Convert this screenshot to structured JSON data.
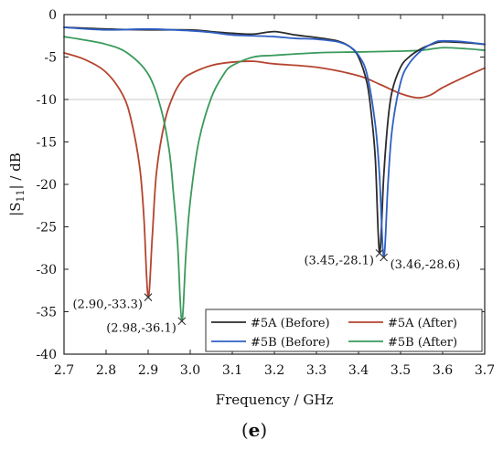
{
  "chart_data": {
    "type": "line",
    "xlabel": "Frequency / GHz",
    "ylabel": "|S11| / dB",
    "ylabel_parts": {
      "pre": "|S",
      "sub": "11",
      "post": "| / dB"
    },
    "panel_label": "(e)",
    "xlim": [
      2.7,
      3.7
    ],
    "ylim": [
      -40,
      0
    ],
    "xticks": [
      2.7,
      2.8,
      2.9,
      3.0,
      3.1,
      3.2,
      3.3,
      3.4,
      3.5,
      3.6,
      3.7
    ],
    "xtick_labels": [
      "2.7",
      "2.8",
      "2.9",
      "3.0",
      "3.1",
      "3.2",
      "3.3",
      "3.4",
      "3.5",
      "3.6",
      "3.7"
    ],
    "yticks": [
      0,
      -5,
      -10,
      -15,
      -20,
      -25,
      -30,
      -35,
      -40
    ],
    "ytick_labels": [
      "0",
      "-5",
      "-10",
      "-15",
      "-20",
      "-25",
      "-30",
      "-35",
      "-40"
    ],
    "reference_line": -10,
    "grid": false,
    "legend_position": "bottom-right",
    "series": [
      {
        "name": "#5A (Before)",
        "color": "#2b2b2b",
        "x": [
          2.7,
          2.8,
          2.9,
          3.0,
          3.05,
          3.1,
          3.15,
          3.2,
          3.25,
          3.3,
          3.35,
          3.38,
          3.4,
          3.42,
          3.43,
          3.44,
          3.45,
          3.46,
          3.47,
          3.48,
          3.5,
          3.52,
          3.55,
          3.58,
          3.6,
          3.65,
          3.7
        ],
        "y": [
          -1.5,
          -1.7,
          -1.8,
          -1.8,
          -2.0,
          -2.2,
          -2.3,
          -2.0,
          -2.4,
          -2.7,
          -3.1,
          -3.8,
          -5.0,
          -8.0,
          -11.5,
          -17.0,
          -28.1,
          -19.0,
          -12.5,
          -9.0,
          -6.2,
          -5.0,
          -4.0,
          -3.4,
          -3.2,
          -3.3,
          -3.5
        ]
      },
      {
        "name": "#5A (After)",
        "color": "#b5442f",
        "x": [
          2.7,
          2.75,
          2.8,
          2.84,
          2.86,
          2.88,
          2.89,
          2.9,
          2.91,
          2.92,
          2.94,
          2.96,
          2.98,
          3.0,
          3.05,
          3.1,
          3.15,
          3.2,
          3.3,
          3.4,
          3.45,
          3.5,
          3.54,
          3.57,
          3.6,
          3.65,
          3.7
        ],
        "y": [
          -4.5,
          -5.3,
          -6.8,
          -9.5,
          -12.5,
          -18.0,
          -24.0,
          -33.3,
          -26.0,
          -18.5,
          -12.5,
          -9.5,
          -7.8,
          -7.0,
          -6.0,
          -5.6,
          -5.5,
          -5.8,
          -6.2,
          -7.2,
          -8.2,
          -9.3,
          -9.8,
          -9.5,
          -8.6,
          -7.4,
          -6.3
        ]
      },
      {
        "name": "#5B (Before)",
        "color": "#2f5fc4",
        "x": [
          2.7,
          2.8,
          2.9,
          3.0,
          3.05,
          3.1,
          3.15,
          3.2,
          3.25,
          3.3,
          3.35,
          3.38,
          3.4,
          3.42,
          3.44,
          3.45,
          3.46,
          3.47,
          3.48,
          3.5,
          3.52,
          3.55,
          3.58,
          3.6,
          3.65,
          3.7
        ],
        "y": [
          -1.5,
          -1.8,
          -1.7,
          -1.9,
          -2.1,
          -2.4,
          -2.5,
          -2.6,
          -2.8,
          -2.9,
          -3.2,
          -3.8,
          -4.8,
          -7.0,
          -13.0,
          -19.0,
          -28.6,
          -20.0,
          -13.5,
          -8.0,
          -5.8,
          -4.2,
          -3.3,
          -3.1,
          -3.2,
          -3.5
        ]
      },
      {
        "name": "#5B (After)",
        "color": "#3a9a5c",
        "x": [
          2.7,
          2.75,
          2.8,
          2.85,
          2.9,
          2.93,
          2.95,
          2.96,
          2.97,
          2.98,
          2.99,
          3.0,
          3.02,
          3.05,
          3.08,
          3.1,
          3.15,
          3.2,
          3.3,
          3.4,
          3.5,
          3.55,
          3.6,
          3.65,
          3.7
        ],
        "y": [
          -2.6,
          -3.0,
          -3.5,
          -4.5,
          -7.0,
          -11.0,
          -16.0,
          -21.0,
          -27.0,
          -36.1,
          -28.0,
          -22.0,
          -15.0,
          -9.8,
          -7.0,
          -6.0,
          -5.0,
          -4.8,
          -4.5,
          -4.4,
          -4.3,
          -4.2,
          -3.9,
          -4.0,
          -4.2
        ]
      }
    ],
    "annotations": [
      {
        "text": "(2.90,-33.3)",
        "x": 2.9,
        "y": -33.3,
        "anchor": "left"
      },
      {
        "text": "(2.98,-36.1)",
        "x": 2.98,
        "y": -36.1,
        "anchor": "left"
      },
      {
        "text": "(3.45,-28.1)",
        "x": 3.45,
        "y": -28.1,
        "anchor": "left"
      },
      {
        "text": "(3.46,-28.6)",
        "x": 3.46,
        "y": -28.6,
        "anchor": "right"
      }
    ]
  }
}
